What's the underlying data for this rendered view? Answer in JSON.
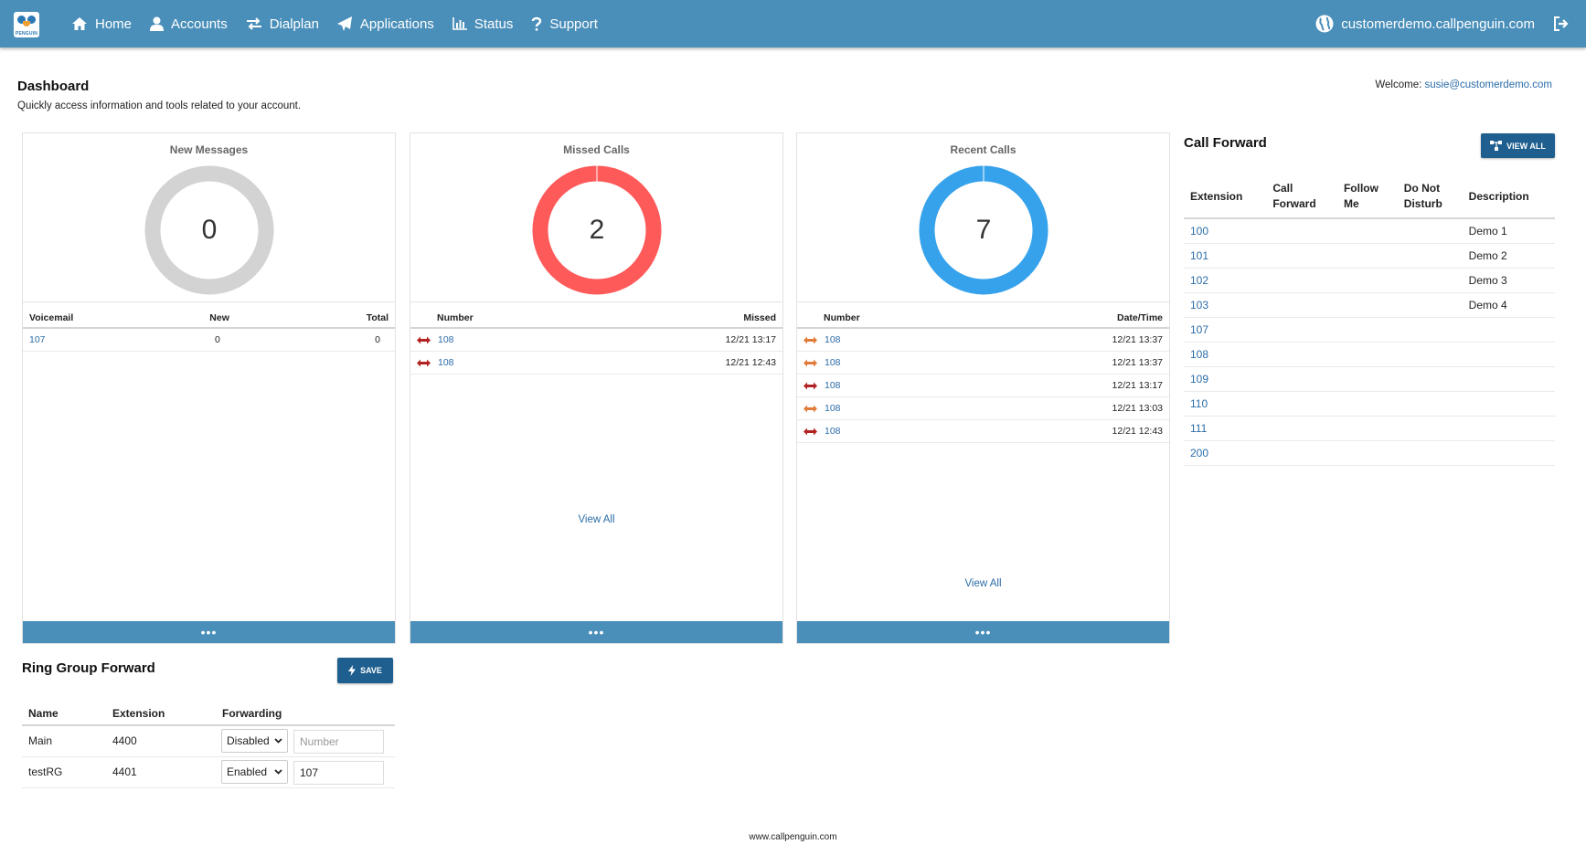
{
  "nav": {
    "items": [
      {
        "label": "Home",
        "icon": "home-icon"
      },
      {
        "label": "Accounts",
        "icon": "user-icon"
      },
      {
        "label": "Dialplan",
        "icon": "exchange-icon"
      },
      {
        "label": "Applications",
        "icon": "paper-plane-icon"
      },
      {
        "label": "Status",
        "icon": "bar-chart-icon"
      },
      {
        "label": "Support",
        "icon": "question-icon"
      }
    ],
    "domain": "customerdemo.callpenguin.com",
    "logo_text": "PENGUIN"
  },
  "header": {
    "title": "Dashboard",
    "subtitle": "Quickly access information and tools related to your account.",
    "welcome_label": "Welcome:",
    "welcome_user": "susie@customerdemo.com"
  },
  "colors": {
    "navbar": "#4a8fba",
    "messages_ring": "#d3d3d3",
    "missed_ring": "#fe5a5a",
    "recent_ring": "#36a2eb",
    "button": "#1f5f8f",
    "missed_arrow": "#b22222",
    "recent_arrow": "#e07b39"
  },
  "cards": {
    "messages": {
      "title": "New Messages",
      "count": "0",
      "headers": [
        "Voicemail",
        "New",
        "Total"
      ],
      "rows": [
        {
          "voicemail": "107",
          "new": "0",
          "total": "0"
        }
      ],
      "footer": "•••"
    },
    "missed": {
      "title": "Missed Calls",
      "count": "2",
      "headers": [
        "Number",
        "Missed"
      ],
      "rows": [
        {
          "number": "108",
          "time": "12/21 13:17"
        },
        {
          "number": "108",
          "time": "12/21 12:43"
        }
      ],
      "view_all": "View All",
      "footer": "•••"
    },
    "recent": {
      "title": "Recent Calls",
      "count": "7",
      "headers": [
        "Number",
        "Date/Time"
      ],
      "rows": [
        {
          "number": "108",
          "time": "12/21 13:37",
          "dir": "outgoing"
        },
        {
          "number": "108",
          "time": "12/21 13:37",
          "dir": "outgoing"
        },
        {
          "number": "108",
          "time": "12/21 13:17",
          "dir": "missed"
        },
        {
          "number": "108",
          "time": "12/21 13:03",
          "dir": "outgoing"
        },
        {
          "number": "108",
          "time": "12/21 12:43",
          "dir": "missed"
        }
      ],
      "view_all": "View All",
      "footer": "•••"
    }
  },
  "call_forward": {
    "title": "Call Forward",
    "button": "VIEW ALL",
    "headers": {
      "extension": "Extension",
      "call_forward_1": "Call",
      "call_forward_2": "Forward",
      "follow_me_1": "Follow",
      "follow_me_2": "Me",
      "dnd_1": "Do Not",
      "dnd_2": "Disturb",
      "description": "Description"
    },
    "rows": [
      {
        "ext": "100",
        "desc": "Demo 1"
      },
      {
        "ext": "101",
        "desc": "Demo 2"
      },
      {
        "ext": "102",
        "desc": "Demo 3"
      },
      {
        "ext": "103",
        "desc": "Demo 4"
      },
      {
        "ext": "107",
        "desc": ""
      },
      {
        "ext": "108",
        "desc": ""
      },
      {
        "ext": "109",
        "desc": ""
      },
      {
        "ext": "110",
        "desc": ""
      },
      {
        "ext": "111",
        "desc": ""
      },
      {
        "ext": "200",
        "desc": ""
      }
    ]
  },
  "ring_group": {
    "title": "Ring Group Forward",
    "button": "SAVE",
    "headers": [
      "Name",
      "Extension",
      "Forwarding"
    ],
    "rows": [
      {
        "name": "Main",
        "ext": "4400",
        "forwarding": "Disabled",
        "number": "",
        "placeholder": "Number"
      },
      {
        "name": "testRG",
        "ext": "4401",
        "forwarding": "Enabled",
        "number": "107",
        "placeholder": "Number"
      }
    ]
  },
  "footer": {
    "site": "www.callpenguin.com"
  }
}
